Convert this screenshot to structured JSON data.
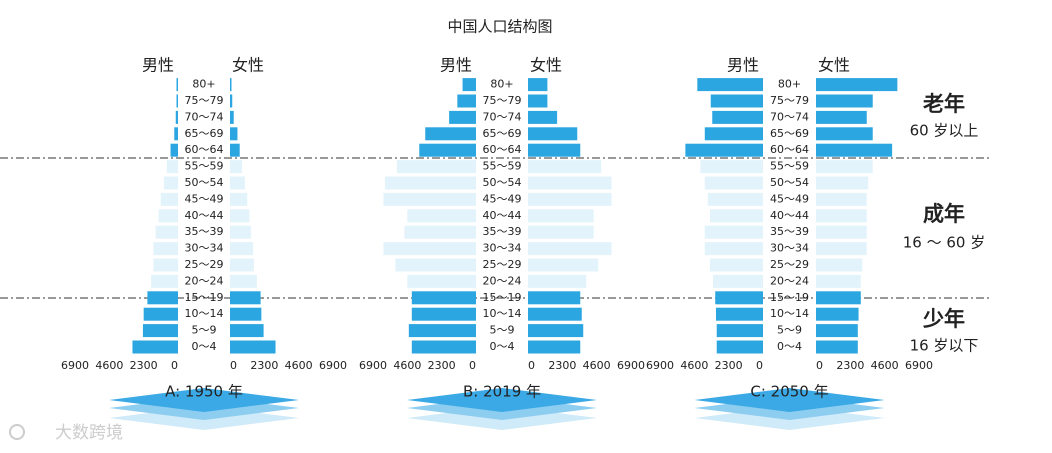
{
  "title": "中国人口结构图",
  "watermark": "大数跨境",
  "bar_colors": [
    "#2ba6e0",
    "#2ba6e0",
    "#2ba6e0",
    "#2ba6e0",
    "#e3f3fb",
    "#e3f3fb",
    "#e3f3fb",
    "#e3f3fb",
    "#e3f3fb",
    "#e3f3fb",
    "#e3f3fb",
    "#e3f3fb",
    "#2ba6e0",
    "#2ba6e0",
    "#2ba6e0",
    "#2ba6e0",
    "#2ba6e0"
  ],
  "age_groups": [
    {
      "name": "老年",
      "range": "60 岁以上"
    },
    {
      "name": "成年",
      "range": "16 ～ 60 岁"
    },
    {
      "name": "少年",
      "range": "16 岁以下"
    }
  ],
  "chart_data": [
    {
      "type": "pyramid",
      "label": "A: 1950 年",
      "categories": [
        "0～4",
        "5～9",
        "10～14",
        "15～19",
        "20～24",
        "25～29",
        "30～34",
        "35～39",
        "40～44",
        "45～49",
        "50～54",
        "55～59",
        "60～64",
        "65～69",
        "70～74",
        "75～79",
        "80+"
      ],
      "series": [
        {
          "name": "男性",
          "values": [
            3050,
            2350,
            2300,
            2050,
            1800,
            1650,
            1650,
            1500,
            1300,
            1150,
            950,
            750,
            500,
            250,
            150,
            100,
            100
          ]
        },
        {
          "name": "女性",
          "values": [
            3050,
            2250,
            2100,
            2050,
            1800,
            1600,
            1550,
            1400,
            1300,
            1150,
            1000,
            800,
            650,
            500,
            250,
            150,
            100
          ]
        }
      ],
      "xlim": [
        0,
        6900
      ],
      "xticks": [
        0,
        2300,
        4600,
        6900
      ]
    },
    {
      "type": "pyramid",
      "label": "B: 2019 年",
      "categories": [
        "0～4",
        "5～9",
        "10～14",
        "15～19",
        "20～24",
        "25～29",
        "30～34",
        "35～39",
        "40～44",
        "45～49",
        "50～54",
        "55～59",
        "60～64",
        "65～69",
        "70～74",
        "75～79",
        "80+"
      ],
      "series": [
        {
          "name": "男性",
          "values": [
            4300,
            4500,
            4300,
            4300,
            4600,
            5400,
            6200,
            4800,
            4600,
            6200,
            6100,
            5300,
            3800,
            3400,
            1800,
            1250,
            900
          ]
        },
        {
          "name": "女性",
          "values": [
            3500,
            3700,
            3600,
            3500,
            3900,
            4700,
            5600,
            4400,
            4400,
            5600,
            5600,
            4900,
            3500,
            3300,
            1950,
            1300,
            1300
          ]
        }
      ],
      "xlim": [
        0,
        6900
      ],
      "xticks": [
        0,
        2300,
        4600,
        6900
      ]
    },
    {
      "type": "pyramid",
      "label": "C: 2050 年",
      "categories": [
        "0～4",
        "5～9",
        "10～14",
        "15～19",
        "20～24",
        "25～29",
        "30～34",
        "35～39",
        "40～44",
        "45～49",
        "50～54",
        "55～59",
        "60～64",
        "65～69",
        "70～74",
        "75～79",
        "80+"
      ],
      "series": [
        {
          "name": "男性",
          "values": [
            3100,
            3100,
            3150,
            3200,
            3350,
            3550,
            3900,
            3900,
            3550,
            3700,
            3900,
            4200,
            5200,
            3900,
            3400,
            3500,
            4400
          ]
        },
        {
          "name": "女性",
          "values": [
            2800,
            2800,
            2850,
            3000,
            3000,
            3100,
            3400,
            3400,
            3400,
            3400,
            3500,
            3800,
            5100,
            3800,
            3400,
            3800,
            5450
          ]
        }
      ],
      "xlim": [
        0,
        6900
      ],
      "xticks": [
        0,
        2300,
        4600,
        6900
      ]
    }
  ]
}
